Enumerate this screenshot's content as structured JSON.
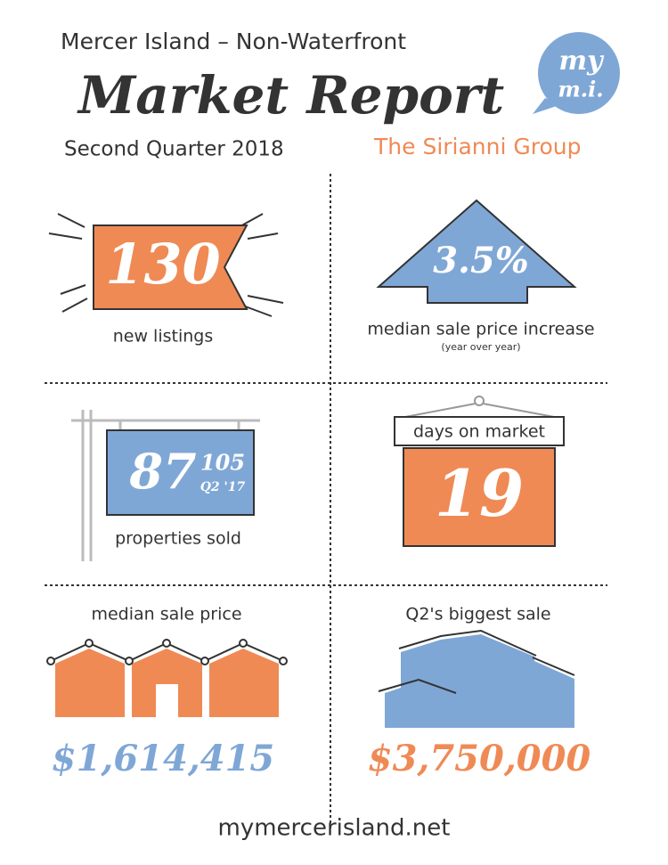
{
  "header": {
    "subtitle_top": "Mercer Island – Non-Waterfront",
    "title": "Market Report",
    "period": "Second Quarter 2018",
    "author": "The Sirianni Group",
    "logo_top": "my",
    "logo_bottom": "m.i."
  },
  "stats": {
    "new_listings": {
      "value": "130",
      "label": "new listings"
    },
    "price_increase": {
      "value": "3.5%",
      "label": "median sale price increase",
      "note": "(year over year)"
    },
    "properties_sold": {
      "value": "87",
      "previous_value": "105",
      "previous_label": "Q2 '17",
      "label": "properties sold"
    },
    "days_on_market": {
      "label": "days on market",
      "value": "19"
    },
    "median_sale_price": {
      "label": "median sale price",
      "value": "$1,614,415"
    },
    "biggest_sale": {
      "label": "Q2's biggest sale",
      "value": "$3,750,000"
    }
  },
  "footer": {
    "website": "mymercerisland.net"
  }
}
